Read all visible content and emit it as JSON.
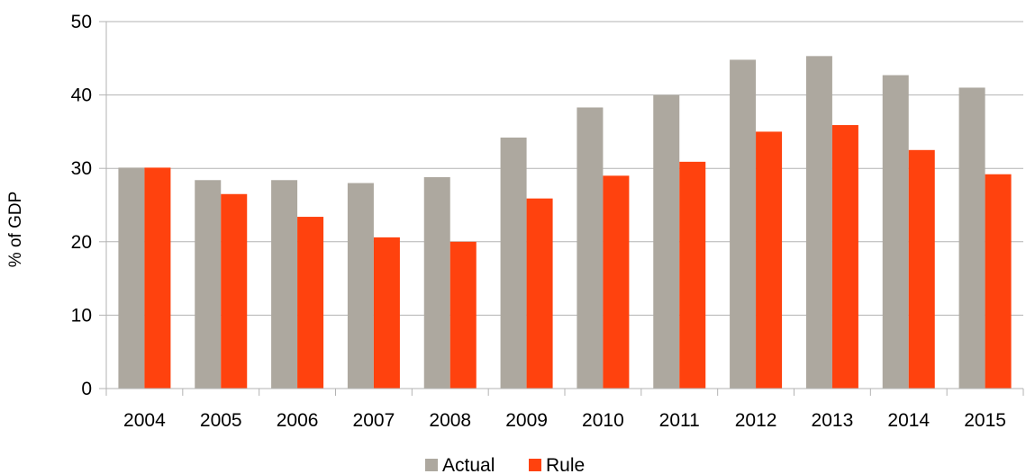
{
  "chart_data": {
    "type": "bar",
    "title": "",
    "xlabel": "",
    "ylabel": "% of GDP",
    "ylim": [
      0,
      50
    ],
    "yticks": [
      0,
      10,
      20,
      30,
      40,
      50
    ],
    "grid": true,
    "legend_position": "bottom",
    "categories": [
      "2004",
      "2005",
      "2006",
      "2007",
      "2008",
      "2009",
      "2010",
      "2011",
      "2012",
      "2013",
      "2014",
      "2015"
    ],
    "series": [
      {
        "name": "Actual",
        "color": "#ada89f",
        "values": [
          30.1,
          28.4,
          28.4,
          28.0,
          28.8,
          34.2,
          38.3,
          40.0,
          44.8,
          45.3,
          42.7,
          41.0
        ]
      },
      {
        "name": "Rule",
        "color": "#ff420e",
        "values": [
          30.1,
          26.5,
          23.4,
          20.6,
          20.0,
          25.9,
          29.0,
          30.9,
          35.0,
          35.9,
          32.5,
          29.2
        ]
      }
    ]
  }
}
